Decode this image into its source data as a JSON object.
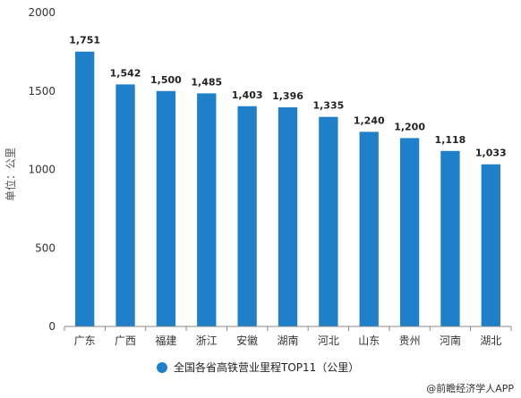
{
  "chart_data": {
    "type": "bar",
    "categories": [
      "广东",
      "广西",
      "福建",
      "浙江",
      "安徽",
      "湖南",
      "河北",
      "山东",
      "贵州",
      "河南",
      "湖北"
    ],
    "series": [
      {
        "name": "全国各省高铁营业里程TOP11（公里）",
        "values": [
          1751,
          1542,
          1500,
          1485,
          1403,
          1396,
          1335,
          1240,
          1200,
          1118,
          1033
        ],
        "labels": [
          "1,751",
          "1,542",
          "1,500",
          "1,485",
          "1,403",
          "1,396",
          "1,335",
          "1,240",
          "1,200",
          "1,118",
          "1,033"
        ]
      }
    ],
    "ylabel": "单位：公里",
    "ylim": [
      0,
      2000
    ],
    "yticks": [
      0,
      500,
      1000,
      1500,
      2000
    ],
    "grid": false,
    "legend_position": "bottom",
    "bar_color": "#1f7fc8"
  },
  "source": "@前瞻经济学人APP"
}
